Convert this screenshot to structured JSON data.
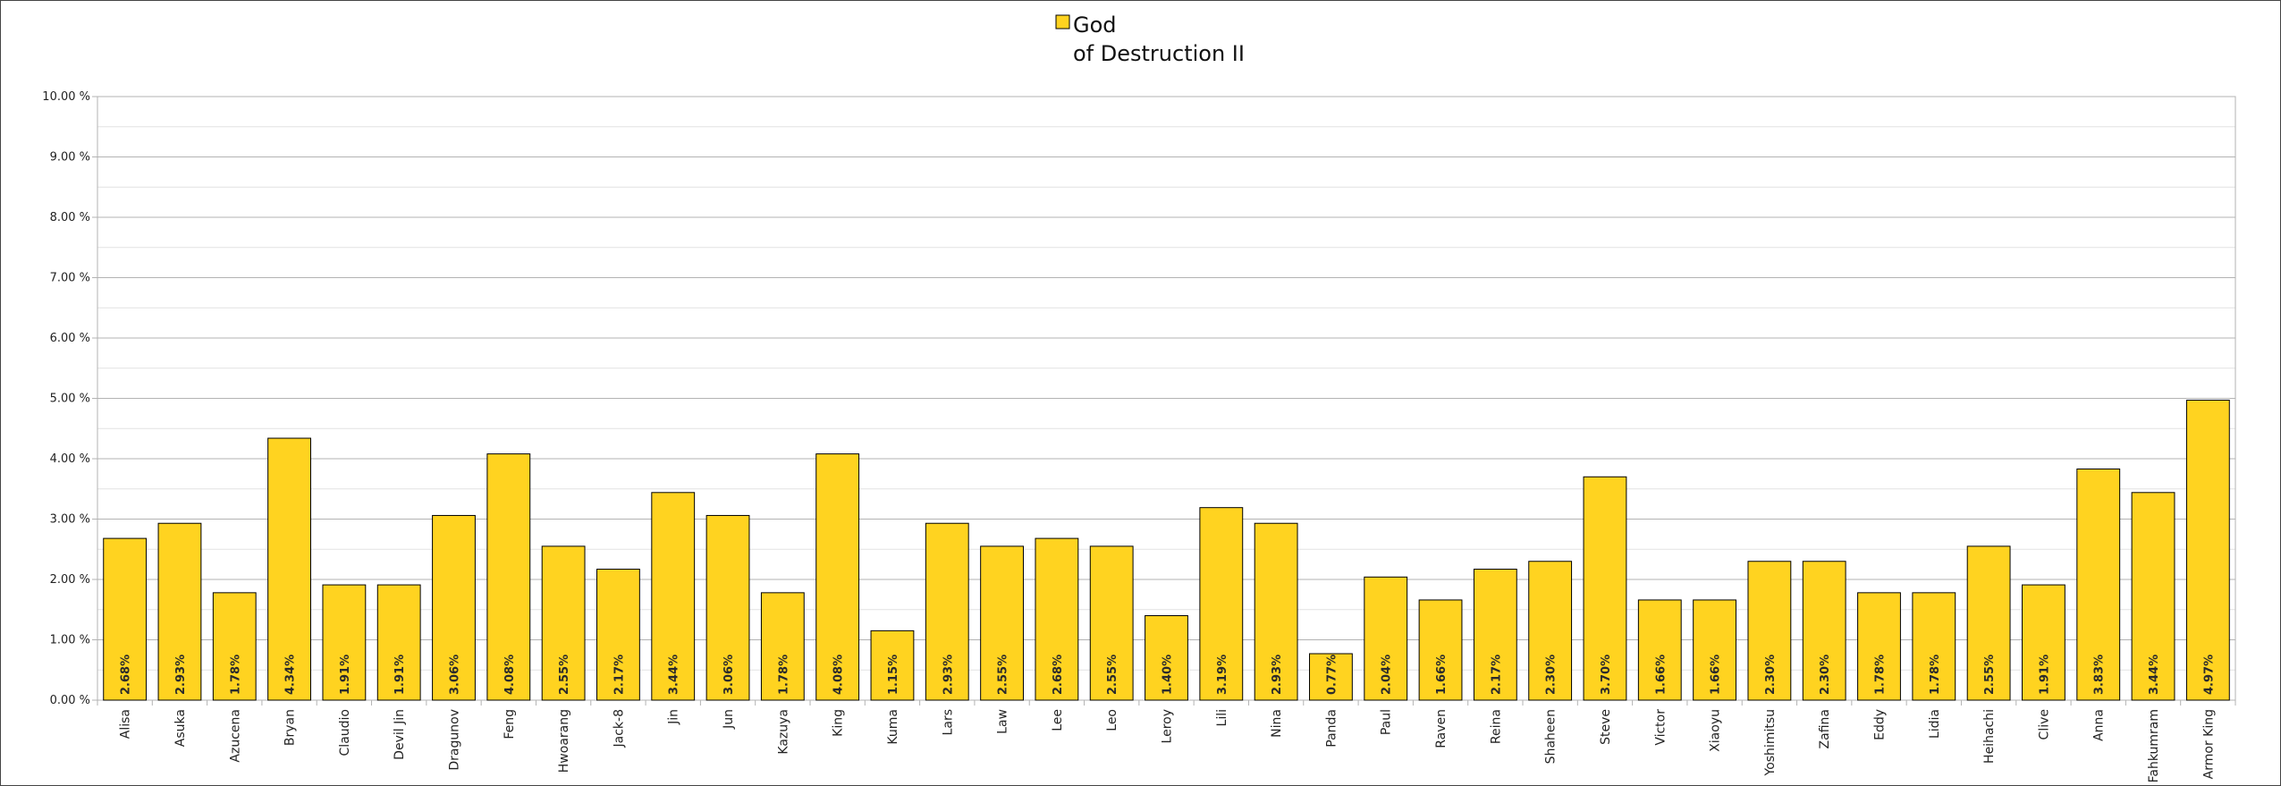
{
  "chart_data": {
    "type": "bar",
    "title": "",
    "xlabel": "",
    "ylabel": "",
    "legend": {
      "position": "top",
      "entries": [
        {
          "name_lines": [
            "God",
            "of Destruction II"
          ],
          "color": "#FFD320"
        }
      ]
    },
    "grid": true,
    "bar_color": "#FFD320",
    "bar_edge_color": "#000000",
    "ylim": [
      0,
      10
    ],
    "yticks": [
      0,
      1,
      2,
      3,
      4,
      5,
      6,
      7,
      8,
      9,
      10
    ],
    "ytick_labels": [
      "0.00 %",
      "1.00 %",
      "2.00 %",
      "3.00 %",
      "4.00 %",
      "5.00 %",
      "6.00 %",
      "7.00 %",
      "8.00 %",
      "9.00 %",
      "10.00 %"
    ],
    "categories": [
      "Alisa",
      "Asuka",
      "Azucena",
      "Bryan",
      "Claudio",
      "Devil Jin",
      "Dragunov",
      "Feng",
      "Hwoarang",
      "Jack-8",
      "Jin",
      "Jun",
      "Kazuya",
      "King",
      "Kuma",
      "Lars",
      "Law",
      "Lee",
      "Leo",
      "Leroy",
      "Lili",
      "Nina",
      "Panda",
      "Paul",
      "Raven",
      "Reina",
      "Shaheen",
      "Steve",
      "Victor",
      "Xiaoyu",
      "Yoshimitsu",
      "Zafina",
      "Eddy",
      "Lidia",
      "Heihachi",
      "Clive",
      "Anna",
      "Fahkumram",
      "Armor King"
    ],
    "values": [
      2.68,
      2.93,
      1.78,
      4.34,
      1.91,
      1.91,
      3.06,
      4.08,
      2.55,
      2.17,
      3.44,
      3.06,
      1.78,
      4.08,
      1.15,
      2.93,
      2.55,
      2.68,
      2.55,
      1.4,
      3.19,
      2.93,
      0.77,
      2.04,
      1.66,
      2.17,
      2.3,
      3.7,
      1.66,
      1.66,
      2.3,
      2.3,
      1.78,
      1.78,
      2.55,
      1.91,
      3.83,
      3.44,
      4.97
    ],
    "data_labels": [
      "2.68%",
      "2.93%",
      "1.78%",
      "4.34%",
      "1.91%",
      "1.91%",
      "3.06%",
      "4.08%",
      "2.55%",
      "2.17%",
      "3.44%",
      "3.06%",
      "1.78%",
      "4.08%",
      "1.15%",
      "2.93%",
      "2.55%",
      "2.68%",
      "2.55%",
      "1.40%",
      "3.19%",
      "2.93%",
      "0.77%",
      "2.04%",
      "1.66%",
      "2.17%",
      "2.30%",
      "3.70%",
      "1.66%",
      "1.66%",
      "2.30%",
      "2.30%",
      "1.78%",
      "1.78%",
      "2.55%",
      "1.91%",
      "3.83%",
      "3.44%",
      "4.97%"
    ]
  }
}
